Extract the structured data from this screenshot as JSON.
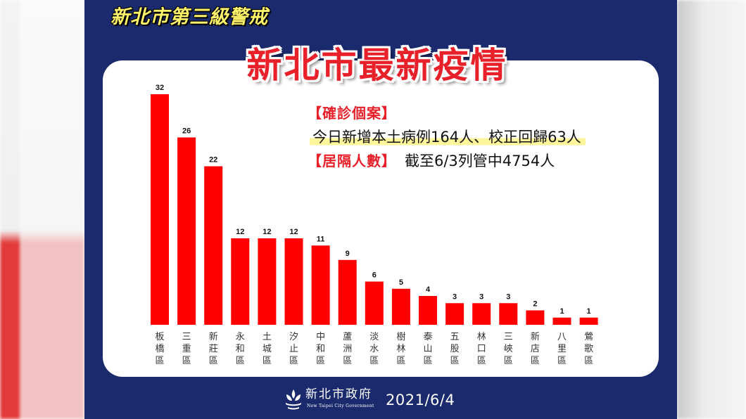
{
  "banner": "新北市第三級警戒",
  "title": "新北市最新疫情",
  "info": {
    "confirmed_label": "【確診個案】",
    "confirmed_text": "今日新增本土病例164人、校正回歸63人",
    "quarantine_label": "【居隔人數】",
    "quarantine_text": "截至6/3列管中4754人"
  },
  "footer": {
    "org_name": "新北市政府",
    "org_name_en": "New Taipei City Government",
    "date": "2021/6/4"
  },
  "colors": {
    "background": "#1a2a6c",
    "bar": "#ff0000",
    "title_red": "#e8202a",
    "banner_yellow": "#fff36a",
    "highlight": "#fff59a"
  },
  "chart_data": {
    "type": "bar",
    "categories": [
      "板橋區",
      "三重區",
      "新莊區",
      "永和區",
      "土城區",
      "汐止區",
      "中和區",
      "蘆洲區",
      "淡水區",
      "樹林區",
      "泰山區",
      "五股區",
      "林口區",
      "三峽區",
      "新店區",
      "八里區",
      "鶯歌區"
    ],
    "values": [
      32,
      26,
      22,
      12,
      12,
      12,
      11,
      9,
      6,
      5,
      4,
      3,
      3,
      3,
      2,
      1,
      1
    ],
    "ylim": [
      0,
      32
    ],
    "data_labels": true,
    "grid": false,
    "legend": "none"
  }
}
